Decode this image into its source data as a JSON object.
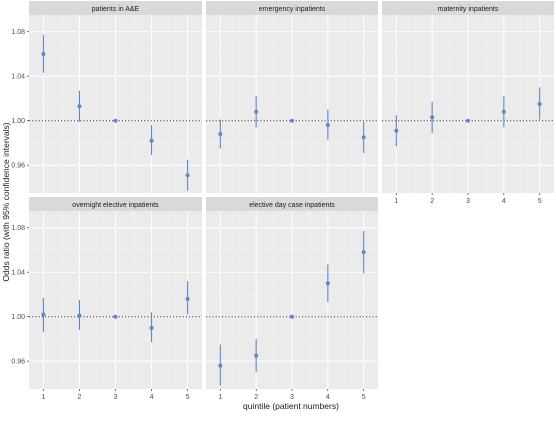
{
  "chart_data": {
    "type": "scatter",
    "subtype": "point-range faceted",
    "xlabel": "quintile (patient numbers)",
    "ylabel": "Odds ratio (with 95% confidence intervals)",
    "x_ticks": [
      "1",
      "2",
      "3",
      "4",
      "5"
    ],
    "y_ticks": [
      "0.96",
      "1.00",
      "1.04",
      "1.08"
    ],
    "ylim": [
      0.935,
      1.095
    ],
    "reference_line": 1.0,
    "grid": true,
    "colors": {
      "point": "#5f87c8",
      "panel_bg": "#ebebeb",
      "strip_bg": "#d9d9d9",
      "grid_major": "#ffffff",
      "grid_minor": "#f5f5f5",
      "reference": "#333333",
      "text": "#4d4d4d"
    },
    "facets": [
      {
        "title": "patients in A&E",
        "x": [
          1,
          2,
          3,
          4,
          5
        ],
        "y": [
          1.06,
          1.013,
          1.0,
          0.982,
          0.951
        ],
        "lower": [
          1.043,
          0.999,
          1.0,
          0.969,
          0.937
        ],
        "upper": [
          1.077,
          1.027,
          1.0,
          0.996,
          0.965
        ]
      },
      {
        "title": "emergency inpatients",
        "x": [
          1,
          2,
          3,
          4,
          5
        ],
        "y": [
          0.988,
          1.008,
          1.0,
          0.996,
          0.985
        ],
        "lower": [
          0.975,
          0.994,
          1.0,
          0.983,
          0.971
        ],
        "upper": [
          1.001,
          1.022,
          1.0,
          1.01,
          0.999
        ]
      },
      {
        "title": "maternity inpatients",
        "x": [
          1,
          2,
          3,
          4,
          5
        ],
        "y": [
          0.991,
          1.003,
          1.0,
          1.008,
          1.015
        ],
        "lower": [
          0.977,
          0.989,
          1.0,
          0.994,
          1.001
        ],
        "upper": [
          1.005,
          1.017,
          1.0,
          1.022,
          1.03
        ]
      },
      {
        "title": "overnight elective inpatients",
        "x": [
          1,
          2,
          3,
          4,
          5
        ],
        "y": [
          1.002,
          1.001,
          1.0,
          0.99,
          1.016
        ],
        "lower": [
          0.986,
          0.988,
          1.0,
          0.977,
          1.002
        ],
        "upper": [
          1.017,
          1.015,
          1.0,
          1.004,
          1.032
        ]
      },
      {
        "title": "elective day case inpatients",
        "x": [
          1,
          2,
          3,
          4,
          5
        ],
        "y": [
          0.956,
          0.965,
          1.0,
          1.03,
          1.058
        ],
        "lower": [
          0.938,
          0.95,
          1.0,
          1.013,
          1.039
        ],
        "upper": [
          0.975,
          0.98,
          1.0,
          1.047,
          1.077
        ]
      }
    ]
  }
}
